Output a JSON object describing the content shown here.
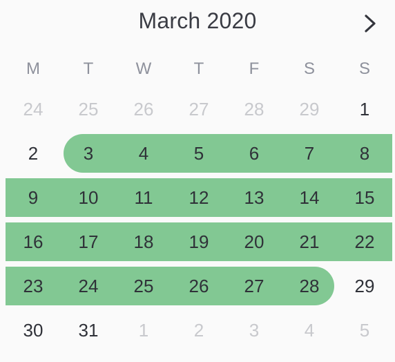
{
  "calendar": {
    "month_label": "March 2020",
    "next_icon": "chevron-right-icon",
    "weekdays": [
      "M",
      "T",
      "W",
      "T",
      "F",
      "S",
      "S"
    ],
    "selection_color": "#82c893",
    "weeks": [
      {
        "days": [
          {
            "label": "24",
            "muted": true
          },
          {
            "label": "25",
            "muted": true
          },
          {
            "label": "26",
            "muted": true
          },
          {
            "label": "27",
            "muted": true
          },
          {
            "label": "28",
            "muted": true
          },
          {
            "label": "29",
            "muted": true
          },
          {
            "label": "1",
            "muted": false
          }
        ]
      },
      {
        "days": [
          {
            "label": "2",
            "muted": false
          },
          {
            "label": "3",
            "muted": false,
            "selected": true
          },
          {
            "label": "4",
            "muted": false,
            "selected": true
          },
          {
            "label": "5",
            "muted": false,
            "selected": true
          },
          {
            "label": "6",
            "muted": false,
            "selected": true
          },
          {
            "label": "7",
            "muted": false,
            "selected": true
          },
          {
            "label": "8",
            "muted": false,
            "selected": true
          }
        ]
      },
      {
        "days": [
          {
            "label": "9",
            "muted": false,
            "selected": true
          },
          {
            "label": "10",
            "muted": false,
            "selected": true
          },
          {
            "label": "11",
            "muted": false,
            "selected": true
          },
          {
            "label": "12",
            "muted": false,
            "selected": true
          },
          {
            "label": "13",
            "muted": false,
            "selected": true
          },
          {
            "label": "14",
            "muted": false,
            "selected": true
          },
          {
            "label": "15",
            "muted": false,
            "selected": true
          }
        ]
      },
      {
        "days": [
          {
            "label": "16",
            "muted": false,
            "selected": true
          },
          {
            "label": "17",
            "muted": false,
            "selected": true
          },
          {
            "label": "18",
            "muted": false,
            "selected": true
          },
          {
            "label": "19",
            "muted": false,
            "selected": true
          },
          {
            "label": "20",
            "muted": false,
            "selected": true
          },
          {
            "label": "21",
            "muted": false,
            "selected": true
          },
          {
            "label": "22",
            "muted": false,
            "selected": true
          }
        ]
      },
      {
        "days": [
          {
            "label": "23",
            "muted": false,
            "selected": true
          },
          {
            "label": "24",
            "muted": false,
            "selected": true
          },
          {
            "label": "25",
            "muted": false,
            "selected": true
          },
          {
            "label": "26",
            "muted": false,
            "selected": true
          },
          {
            "label": "27",
            "muted": false,
            "selected": true
          },
          {
            "label": "28",
            "muted": false,
            "selected": true
          },
          {
            "label": "29",
            "muted": false
          }
        ]
      },
      {
        "days": [
          {
            "label": "30",
            "muted": false
          },
          {
            "label": "31",
            "muted": false
          },
          {
            "label": "1",
            "muted": true
          },
          {
            "label": "2",
            "muted": true
          },
          {
            "label": "3",
            "muted": true
          },
          {
            "label": "4",
            "muted": true
          },
          {
            "label": "5",
            "muted": true
          }
        ]
      }
    ]
  }
}
